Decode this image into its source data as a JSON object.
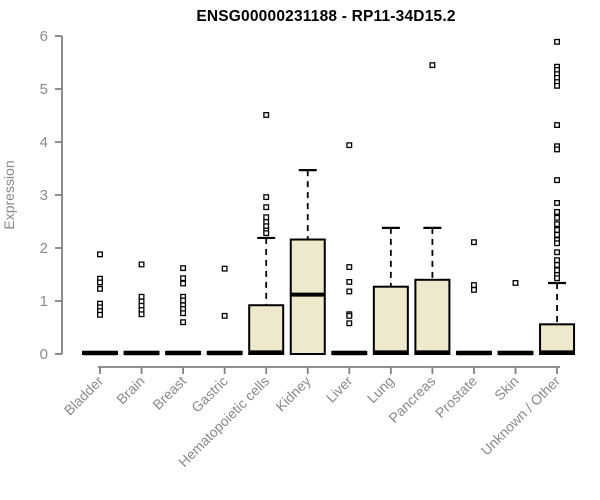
{
  "colors": {
    "background": "#ffffff",
    "box_fill": "#EEE8CD",
    "box_stroke": "#000000",
    "median": "#000000",
    "whisker": "#000000",
    "outlier_stroke": "#000000",
    "outlier_fill": "#ffffff",
    "axis_line": "#828282",
    "axis_text": "#8a8a8a",
    "title": "#000000"
  },
  "chart_data": {
    "type": "boxplot",
    "title": "ENSG00000231188 - RP11-34D15.2",
    "xlabel": "",
    "ylabel": "Expression",
    "ylim": [
      0,
      6
    ],
    "yticks": [
      0,
      1,
      2,
      3,
      4,
      5,
      6
    ],
    "grid": false,
    "legend": false,
    "categories": [
      "Bladder",
      "Brain",
      "Breast",
      "Gastric",
      "Hematopoietic cells",
      "Kidney",
      "Liver",
      "Lung",
      "Pancreas",
      "Prostate",
      "Skin",
      "Unknown / Other"
    ],
    "series": [
      {
        "category": "Bladder",
        "q1": 0,
        "median": 0.02,
        "q3": 0.04,
        "whisker_low": 0,
        "whisker_high": 0,
        "outliers": [
          1.88,
          1.42,
          1.35,
          1.23,
          0.95,
          0.88,
          0.81,
          0.74
        ]
      },
      {
        "category": "Brain",
        "q1": 0,
        "median": 0.02,
        "q3": 0.04,
        "whisker_low": 0,
        "whisker_high": 0,
        "outliers": [
          1.69,
          1.08,
          0.99,
          0.91,
          0.83,
          0.75
        ]
      },
      {
        "category": "Breast",
        "q1": 0,
        "median": 0.02,
        "q3": 0.04,
        "whisker_low": 0,
        "whisker_high": 0,
        "outliers": [
          1.62,
          1.43,
          1.33,
          1.08,
          1.01,
          0.92,
          0.85,
          0.77,
          0.6
        ]
      },
      {
        "category": "Gastric",
        "q1": 0,
        "median": 0.02,
        "q3": 0.04,
        "whisker_low": 0,
        "whisker_high": 0,
        "outliers": [
          1.61,
          0.72
        ]
      },
      {
        "category": "Hematopoietic cells",
        "q1": 0,
        "median": 0.03,
        "q3": 0.92,
        "whisker_low": 0,
        "whisker_high": 2.19,
        "outliers": [
          4.51,
          2.96,
          2.77,
          2.58,
          2.49,
          2.41,
          2.33,
          2.28
        ]
      },
      {
        "category": "Kidney",
        "q1": 0,
        "median": 1.12,
        "q3": 2.16,
        "whisker_low": 0,
        "whisker_high": 3.47,
        "outliers": []
      },
      {
        "category": "Liver",
        "q1": 0,
        "median": 0.02,
        "q3": 0.04,
        "whisker_low": 0,
        "whisker_high": 0,
        "outliers": [
          3.94,
          1.64,
          1.36,
          1.18,
          0.75,
          0.72,
          0.58
        ]
      },
      {
        "category": "Lung",
        "q1": 0,
        "median": 0.03,
        "q3": 1.27,
        "whisker_low": 0,
        "whisker_high": 2.38,
        "outliers": []
      },
      {
        "category": "Pancreas",
        "q1": 0,
        "median": 0.03,
        "q3": 1.4,
        "whisker_low": 0,
        "whisker_high": 2.38,
        "outliers": [
          5.45
        ]
      },
      {
        "category": "Prostate",
        "q1": 0,
        "median": 0.02,
        "q3": 0.04,
        "whisker_low": 0,
        "whisker_high": 0,
        "outliers": [
          2.11,
          1.3,
          1.21
        ]
      },
      {
        "category": "Skin",
        "q1": 0,
        "median": 0.02,
        "q3": 0.04,
        "whisker_low": 0,
        "whisker_high": 0,
        "outliers": [
          1.34
        ]
      },
      {
        "category": "Unknown / Other",
        "q1": 0,
        "median": 0.03,
        "q3": 0.56,
        "whisker_low": 0,
        "whisker_high": 1.34,
        "outliers": [
          5.89,
          5.42,
          5.36,
          5.28,
          5.21,
          5.13,
          5.06,
          4.32,
          3.92,
          3.86,
          3.28,
          2.85,
          2.68,
          2.57,
          2.45,
          2.34,
          2.25,
          2.15,
          2.09,
          1.92,
          1.77,
          1.68,
          1.58,
          1.49,
          1.43
        ]
      }
    ]
  }
}
